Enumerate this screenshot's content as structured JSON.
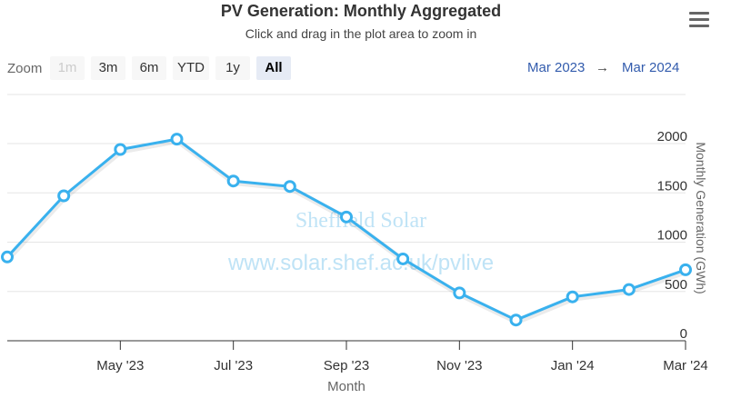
{
  "chart_data": {
    "type": "line",
    "title": "PV Generation: Monthly Aggregated",
    "subtitle": "Click and drag in the plot area to zoom in",
    "xlabel": "Month",
    "ylabel": "Monthly Generation (GWh)",
    "ylim": [
      0,
      2000
    ],
    "yticks": [
      0,
      500,
      1000,
      1500,
      2000
    ],
    "xtick_labels": [
      "May '23",
      "Jul '23",
      "Sep '23",
      "Nov '23",
      "Jan '24",
      "Mar '24"
    ],
    "x": [
      "2023-03",
      "2023-04",
      "2023-05",
      "2023-06",
      "2023-07",
      "2023-08",
      "2023-09",
      "2023-10",
      "2023-11",
      "2023-12",
      "2024-01",
      "2024-02",
      "2024-03"
    ],
    "values": [
      850,
      1470,
      1940,
      2045,
      1620,
      1565,
      1255,
      830,
      485,
      210,
      445,
      520,
      720
    ],
    "color": "#39b1ee",
    "grid": true,
    "legend": false
  },
  "toolbar": {
    "zoom_label": "Zoom",
    "buttons": [
      {
        "label": "1m",
        "state": "disabled"
      },
      {
        "label": "3m",
        "state": "normal"
      },
      {
        "label": "6m",
        "state": "normal"
      },
      {
        "label": "YTD",
        "state": "normal"
      },
      {
        "label": "1y",
        "state": "normal"
      },
      {
        "label": "All",
        "state": "active"
      }
    ]
  },
  "range": {
    "from": "Mar 2023",
    "arrow": "→",
    "to": "Mar 2024"
  },
  "watermark": {
    "line1": "Sheffield Solar",
    "line2": "www.solar.shef.ac.uk/pvlive"
  },
  "icons": {
    "menu": "hamburger-menu-icon"
  }
}
